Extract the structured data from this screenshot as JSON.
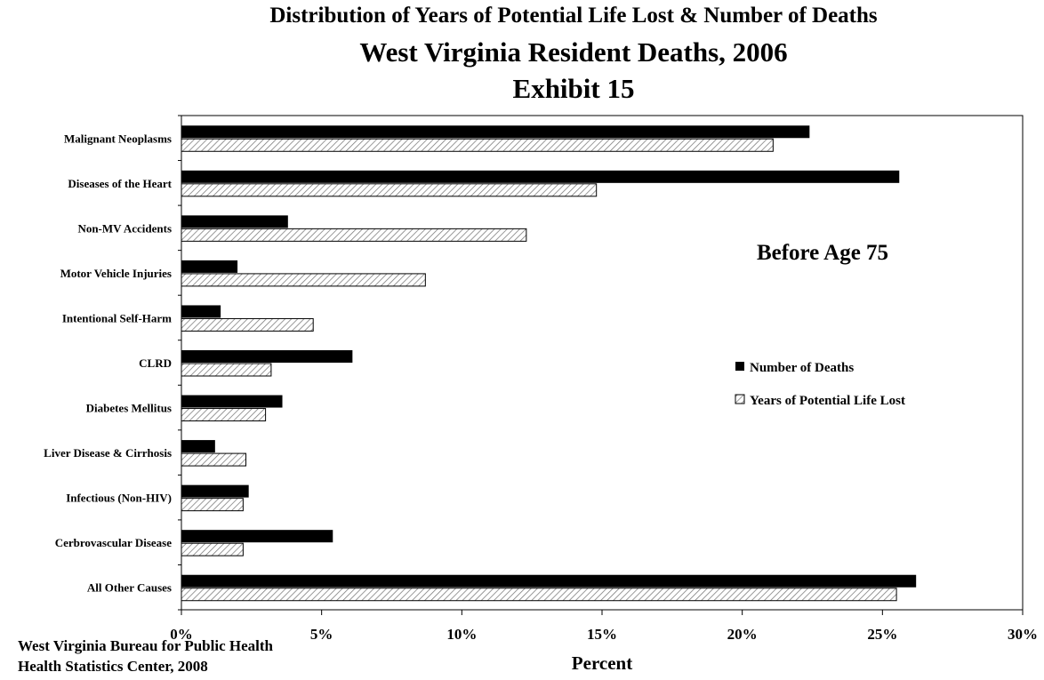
{
  "titles": {
    "line1": "Distribution of Years of Potential Life Lost & Number of Deaths",
    "line2": "West Virginia Resident Deaths, 2006",
    "line3": "Exhibit 15"
  },
  "footer": {
    "line1": "West Virginia Bureau for Public Health",
    "line2": "Health Statistics Center, 2008"
  },
  "colors": {
    "deaths": "#000000",
    "ypll": "#ffffff",
    "ypll_hatch": "#777777"
  },
  "chart_data": {
    "type": "bar",
    "orientation": "horizontal",
    "annotation": "Before Age 75",
    "categories": [
      "Malignant Neoplasms",
      "Diseases of the Heart",
      "Non-MV Accidents",
      "Motor Vehicle Injuries",
      "Intentional Self-Harm",
      "CLRD",
      "Diabetes Mellitus",
      "Liver Disease & Cirrhosis",
      "Infectious (Non-HIV)",
      "Cerbrovascular Disease",
      "All Other Causes"
    ],
    "series": [
      {
        "name": "Number of Deaths",
        "values": [
          22.4,
          25.6,
          3.8,
          2.0,
          1.4,
          6.1,
          3.6,
          1.2,
          2.4,
          5.4,
          26.2
        ]
      },
      {
        "name": "Years of Potential Life Lost",
        "values": [
          21.1,
          14.8,
          12.3,
          8.7,
          4.7,
          3.2,
          3.0,
          2.3,
          2.2,
          2.2,
          25.5
        ]
      }
    ],
    "xlabel": "Percent",
    "ylabel": "",
    "xlim": [
      0,
      30
    ],
    "xticks": [
      "0%",
      "5%",
      "10%",
      "15%",
      "20%",
      "25%",
      "30%"
    ],
    "grid": false,
    "legend_position": "right"
  }
}
